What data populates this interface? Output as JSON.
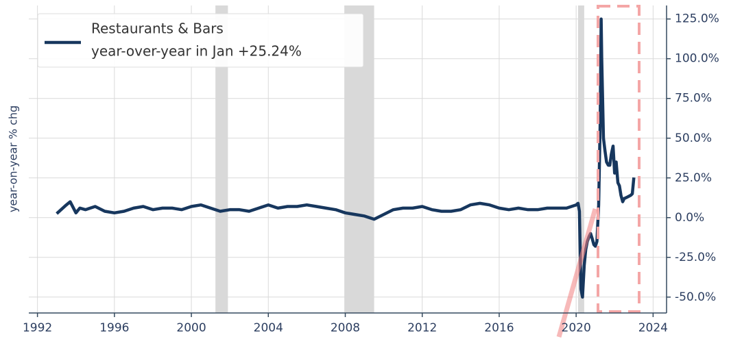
{
  "chart_data": {
    "type": "line",
    "y_label": "year-on-year % chg",
    "legend_note": "year-over-year in Jan +25.24%",
    "legend": "upper left",
    "grid": true,
    "xlim": [
      1991.55,
      2024.7
    ],
    "ylim": [
      -60,
      133.5
    ],
    "xticks": [
      1992,
      1996,
      2000,
      2004,
      2008,
      2012,
      2016,
      2020,
      2024
    ],
    "yticks": [
      {
        "value": -50,
        "label": "-50.0%"
      },
      {
        "value": -25,
        "label": "-25.0%"
      },
      {
        "value": 0,
        "label": "0.0%"
      },
      {
        "value": 25,
        "label": "25.0%"
      },
      {
        "value": 50,
        "label": "50.0%"
      },
      {
        "value": 75,
        "label": "75.0%"
      },
      {
        "value": 100,
        "label": "100.0%"
      },
      {
        "value": 125,
        "label": "125.0%"
      }
    ],
    "shaded_periods": [
      [
        2001.25,
        2001.9
      ],
      [
        2007.95,
        2009.5
      ],
      [
        2020.1,
        2020.42
      ]
    ],
    "series": [
      {
        "name": "Restaurants & Bars",
        "color": "#17375e",
        "x": [
          1993.0,
          1993.5,
          1993.7,
          1994.0,
          1994.2,
          1994.5,
          1995.0,
          1995.5,
          1996.0,
          1996.5,
          1997.0,
          1997.5,
          1998.0,
          1998.5,
          1999.0,
          1999.5,
          2000.0,
          2000.5,
          2001.0,
          2001.5,
          2002.0,
          2002.5,
          2003.0,
          2003.5,
          2004.0,
          2004.5,
          2005.0,
          2005.5,
          2006.0,
          2006.5,
          2007.0,
          2007.5,
          2008.0,
          2008.5,
          2009.0,
          2009.5,
          2010.0,
          2010.5,
          2011.0,
          2011.5,
          2012.0,
          2012.5,
          2013.0,
          2013.5,
          2014.0,
          2014.5,
          2015.0,
          2015.5,
          2016.0,
          2016.5,
          2017.0,
          2017.5,
          2018.0,
          2018.5,
          2019.0,
          2019.5,
          2020.0,
          2020.1,
          2020.17,
          2020.25,
          2020.33,
          2020.42,
          2020.5,
          2020.58,
          2020.67,
          2020.75,
          2020.83,
          2020.92,
          2021.0,
          2021.08,
          2021.17,
          2021.25,
          2021.3,
          2021.33,
          2021.42,
          2021.5,
          2021.58,
          2021.67,
          2021.75,
          2021.83,
          2021.92,
          2022.0,
          2022.08,
          2022.17,
          2022.25,
          2022.33,
          2022.42,
          2022.5,
          2022.67,
          2022.83,
          2022.92,
          2023.0
        ],
        "values": [
          2.5,
          8,
          10,
          3,
          6,
          5,
          7,
          4,
          3,
          4,
          6,
          7,
          5,
          6,
          6,
          5,
          7,
          8,
          6,
          4,
          5,
          5,
          4,
          6,
          8,
          6,
          7,
          7,
          8,
          7,
          6,
          5,
          3,
          2,
          1,
          -1,
          2,
          5,
          6,
          6,
          7,
          5,
          4,
          4,
          5,
          8,
          9,
          8,
          6,
          5,
          6,
          5,
          5,
          6,
          6,
          6,
          8,
          9,
          4,
          -45,
          -50,
          -30,
          -20,
          -15,
          -12,
          -10,
          -13,
          -17,
          -18,
          -15,
          8,
          60,
          125,
          100,
          50,
          42,
          35,
          33,
          33,
          40,
          45,
          28,
          35,
          22,
          20,
          14,
          10,
          12,
          13,
          14,
          15,
          25.24
        ]
      }
    ]
  }
}
